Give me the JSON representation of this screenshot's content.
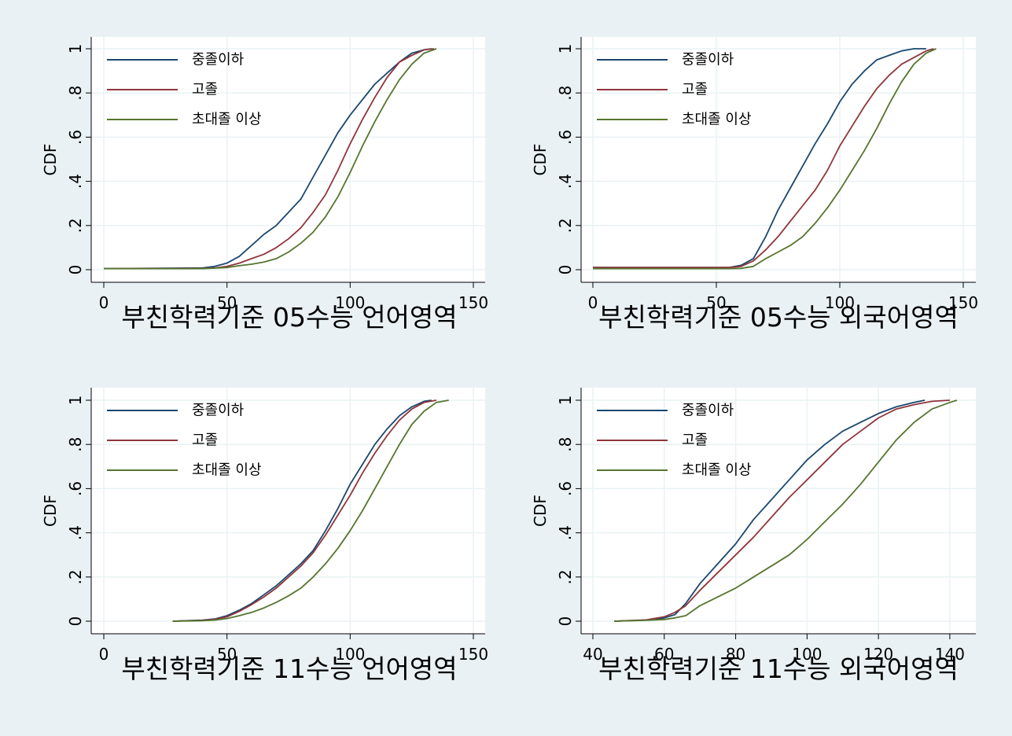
{
  "chart_data": [
    {
      "type": "line",
      "title": "",
      "xlabel": "부친학력기준  05수능 언어영역",
      "ylabel": "CDF",
      "xlim": [
        0,
        150
      ],
      "ylim": [
        0,
        1
      ],
      "xticks": [
        0,
        50,
        100,
        150
      ],
      "yticks": [
        0,
        0.2,
        0.4,
        0.6,
        0.8,
        1
      ],
      "ytick_labels": [
        "0",
        ".2",
        ".4",
        ".6",
        ".8",
        "1"
      ],
      "grid": true,
      "legend_position": "top-left",
      "series": [
        {
          "name": "중졸이하",
          "color": "#1a476f",
          "x": [
            0,
            40,
            45,
            50,
            55,
            60,
            65,
            70,
            75,
            80,
            85,
            90,
            95,
            100,
            105,
            110,
            115,
            120,
            125,
            130,
            133
          ],
          "y": [
            0.005,
            0.008,
            0.015,
            0.03,
            0.06,
            0.11,
            0.16,
            0.2,
            0.26,
            0.32,
            0.42,
            0.52,
            0.62,
            0.7,
            0.77,
            0.84,
            0.89,
            0.94,
            0.98,
            0.995,
            1
          ]
        },
        {
          "name": "고졸",
          "color": "#90353b",
          "x": [
            0,
            40,
            45,
            50,
            55,
            60,
            65,
            70,
            75,
            80,
            85,
            90,
            95,
            100,
            105,
            110,
            115,
            120,
            125,
            130,
            134
          ],
          "y": [
            0.005,
            0.006,
            0.008,
            0.015,
            0.03,
            0.05,
            0.07,
            0.1,
            0.14,
            0.19,
            0.26,
            0.34,
            0.45,
            0.57,
            0.68,
            0.78,
            0.87,
            0.94,
            0.97,
            0.995,
            1
          ]
        },
        {
          "name": "초대졸 이상",
          "color": "#55752f",
          "x": [
            0,
            40,
            45,
            50,
            55,
            60,
            65,
            70,
            75,
            80,
            85,
            90,
            95,
            100,
            105,
            110,
            115,
            120,
            125,
            130,
            135
          ],
          "y": [
            0.005,
            0.005,
            0.007,
            0.01,
            0.018,
            0.025,
            0.035,
            0.05,
            0.08,
            0.12,
            0.17,
            0.24,
            0.33,
            0.44,
            0.56,
            0.67,
            0.77,
            0.86,
            0.93,
            0.98,
            1
          ]
        }
      ]
    },
    {
      "type": "line",
      "title": "",
      "xlabel": "부친학력기준  05수능 외국어영역",
      "ylabel": "CDF",
      "xlim": [
        0,
        150
      ],
      "ylim": [
        0,
        1
      ],
      "xticks": [
        0,
        50,
        100,
        150
      ],
      "yticks": [
        0,
        0.2,
        0.4,
        0.6,
        0.8,
        1
      ],
      "ytick_labels": [
        "0",
        ".2",
        ".4",
        ".6",
        ".8",
        "1"
      ],
      "grid": true,
      "legend_position": "top-left",
      "series": [
        {
          "name": "중졸이하",
          "color": "#1a476f",
          "x": [
            0,
            55,
            60,
            65,
            70,
            75,
            80,
            85,
            90,
            95,
            100,
            105,
            110,
            115,
            120,
            125,
            130,
            135
          ],
          "y": [
            0.01,
            0.01,
            0.02,
            0.05,
            0.15,
            0.27,
            0.37,
            0.47,
            0.57,
            0.66,
            0.76,
            0.84,
            0.9,
            0.95,
            0.97,
            0.99,
            1,
            1
          ]
        },
        {
          "name": "고졸",
          "color": "#90353b",
          "x": [
            0,
            55,
            60,
            65,
            70,
            75,
            80,
            85,
            90,
            95,
            100,
            105,
            110,
            115,
            120,
            125,
            130,
            135,
            138
          ],
          "y": [
            0.01,
            0.01,
            0.015,
            0.04,
            0.09,
            0.15,
            0.22,
            0.29,
            0.36,
            0.45,
            0.56,
            0.65,
            0.74,
            0.82,
            0.88,
            0.93,
            0.96,
            0.99,
            1
          ]
        },
        {
          "name": "초대졸 이상",
          "color": "#55752f",
          "x": [
            0,
            55,
            60,
            65,
            70,
            75,
            80,
            85,
            90,
            95,
            100,
            105,
            110,
            115,
            120,
            125,
            130,
            135,
            139
          ],
          "y": [
            0.005,
            0.005,
            0.006,
            0.015,
            0.05,
            0.08,
            0.11,
            0.15,
            0.21,
            0.28,
            0.36,
            0.45,
            0.54,
            0.64,
            0.75,
            0.85,
            0.93,
            0.98,
            1
          ]
        }
      ]
    },
    {
      "type": "line",
      "title": "",
      "xlabel": "부친학력기준  11수능 언어영역",
      "ylabel": "CDF",
      "xlim": [
        0,
        150
      ],
      "ylim": [
        0,
        1
      ],
      "xticks": [
        0,
        50,
        100,
        150
      ],
      "yticks": [
        0,
        0.2,
        0.4,
        0.6,
        0.8,
        1
      ],
      "ytick_labels": [
        "0",
        ".2",
        ".4",
        ".6",
        ".8",
        "1"
      ],
      "grid": true,
      "legend_position": "top-left",
      "series": [
        {
          "name": "중졸이하",
          "color": "#1a476f",
          "x": [
            28,
            40,
            45,
            50,
            55,
            60,
            65,
            70,
            75,
            80,
            85,
            90,
            95,
            100,
            105,
            110,
            115,
            120,
            125,
            130,
            133
          ],
          "y": [
            0,
            0.005,
            0.01,
            0.025,
            0.05,
            0.08,
            0.12,
            0.16,
            0.21,
            0.26,
            0.32,
            0.41,
            0.51,
            0.62,
            0.71,
            0.8,
            0.87,
            0.93,
            0.97,
            0.995,
            1
          ]
        },
        {
          "name": "고졸",
          "color": "#90353b",
          "x": [
            28,
            40,
            45,
            50,
            55,
            60,
            65,
            70,
            75,
            80,
            85,
            90,
            95,
            100,
            105,
            110,
            115,
            120,
            125,
            130,
            135
          ],
          "y": [
            0,
            0.004,
            0.008,
            0.02,
            0.045,
            0.075,
            0.11,
            0.15,
            0.2,
            0.25,
            0.31,
            0.39,
            0.48,
            0.57,
            0.67,
            0.76,
            0.84,
            0.91,
            0.96,
            0.99,
            1
          ]
        },
        {
          "name": "초대졸 이상",
          "color": "#55752f",
          "x": [
            28,
            40,
            45,
            50,
            55,
            60,
            65,
            70,
            75,
            80,
            85,
            90,
            95,
            100,
            105,
            110,
            115,
            120,
            125,
            130,
            135,
            140
          ],
          "y": [
            0,
            0.002,
            0.005,
            0.012,
            0.025,
            0.04,
            0.06,
            0.085,
            0.115,
            0.15,
            0.2,
            0.26,
            0.33,
            0.41,
            0.5,
            0.6,
            0.7,
            0.8,
            0.89,
            0.95,
            0.99,
            1
          ]
        }
      ]
    },
    {
      "type": "line",
      "title": "",
      "xlabel": "부친학력기준  11수능 외국어영역",
      "ylabel": "CDF",
      "xlim": [
        40,
        142
      ],
      "ylim": [
        0,
        1
      ],
      "xticks": [
        40,
        60,
        80,
        100,
        120,
        140
      ],
      "yticks": [
        0,
        0.2,
        0.4,
        0.6,
        0.8,
        1
      ],
      "ytick_labels": [
        "0",
        ".2",
        ".4",
        ".6",
        ".8",
        "1"
      ],
      "grid": true,
      "legend_position": "top-left",
      "series": [
        {
          "name": "중졸이하",
          "color": "#1a476f",
          "x": [
            46,
            55,
            60,
            63,
            66,
            70,
            75,
            80,
            85,
            90,
            95,
            100,
            105,
            110,
            115,
            120,
            125,
            130,
            133
          ],
          "y": [
            0,
            0.005,
            0.015,
            0.03,
            0.08,
            0.17,
            0.26,
            0.35,
            0.46,
            0.55,
            0.64,
            0.73,
            0.8,
            0.86,
            0.9,
            0.94,
            0.97,
            0.99,
            1
          ]
        },
        {
          "name": "고졸",
          "color": "#90353b",
          "x": [
            46,
            55,
            60,
            63,
            66,
            70,
            75,
            80,
            85,
            90,
            95,
            100,
            105,
            110,
            115,
            120,
            125,
            130,
            135,
            140
          ],
          "y": [
            0,
            0.006,
            0.02,
            0.04,
            0.07,
            0.14,
            0.22,
            0.3,
            0.38,
            0.47,
            0.56,
            0.64,
            0.72,
            0.8,
            0.86,
            0.92,
            0.96,
            0.98,
            0.995,
            1
          ]
        },
        {
          "name": "초대졸 이상",
          "color": "#55752f",
          "x": [
            46,
            55,
            60,
            63,
            66,
            70,
            75,
            80,
            85,
            90,
            95,
            100,
            105,
            110,
            115,
            120,
            125,
            130,
            135,
            140,
            142
          ],
          "y": [
            0,
            0.004,
            0.008,
            0.015,
            0.025,
            0.07,
            0.11,
            0.15,
            0.2,
            0.25,
            0.3,
            0.37,
            0.45,
            0.53,
            0.62,
            0.72,
            0.82,
            0.9,
            0.96,
            0.99,
            1
          ]
        }
      ]
    }
  ]
}
